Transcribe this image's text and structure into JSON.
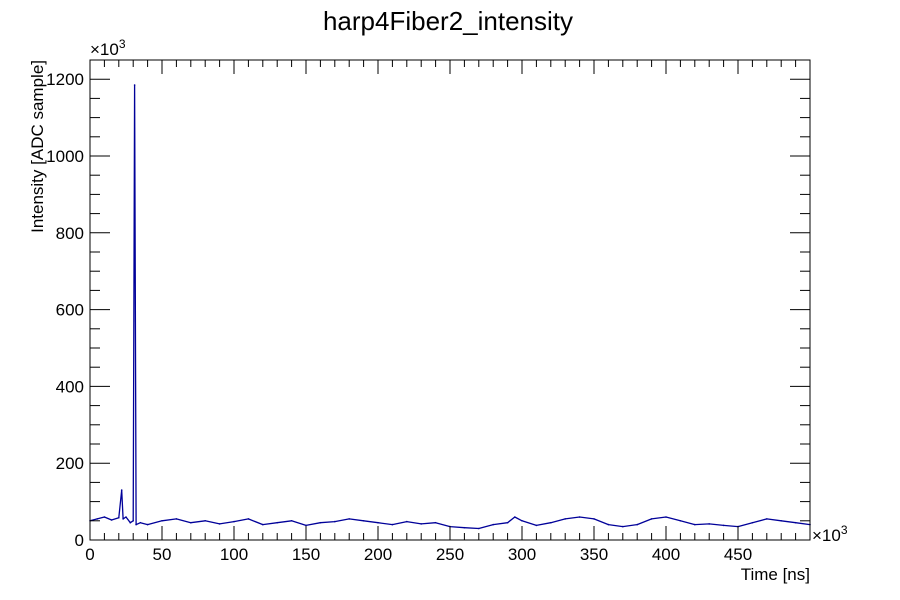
{
  "chart_data": {
    "type": "line",
    "title": "harp4Fiber2_intensity",
    "xlabel": "Time [ns]",
    "ylabel": "Intensity [ADC sample]",
    "x_multiplier": "×10",
    "x_multiplier_exp": "3",
    "y_multiplier": "×10",
    "y_multiplier_exp": "3",
    "xlim": [
      0,
      500
    ],
    "ylim": [
      0,
      1250
    ],
    "x_ticks": [
      "0",
      "50",
      "100",
      "150",
      "200",
      "250",
      "300",
      "350",
      "400",
      "450"
    ],
    "y_ticks": [
      "0",
      "200",
      "400",
      "600",
      "800",
      "1000",
      "1200"
    ],
    "grid": false,
    "line_color": "#000099",
    "series": [
      {
        "x": [
          0,
          5,
          10,
          15,
          20,
          22,
          23,
          25,
          28,
          30,
          31,
          32,
          35,
          40,
          50,
          60,
          70,
          80,
          90,
          100,
          110,
          120,
          130,
          140,
          150,
          160,
          170,
          180,
          190,
          200,
          210,
          220,
          230,
          240,
          250,
          260,
          270,
          280,
          290,
          295,
          300,
          310,
          320,
          330,
          340,
          350,
          360,
          370,
          380,
          390,
          400,
          410,
          420,
          430,
          440,
          450,
          460,
          470,
          480,
          490,
          500
        ],
        "values": [
          50,
          55,
          60,
          52,
          58,
          130,
          55,
          60,
          45,
          50,
          1185,
          40,
          45,
          40,
          50,
          55,
          45,
          50,
          42,
          48,
          55,
          40,
          45,
          50,
          38,
          45,
          48,
          55,
          50,
          45,
          40,
          48,
          42,
          45,
          35,
          32,
          30,
          40,
          45,
          60,
          50,
          38,
          45,
          55,
          60,
          55,
          40,
          35,
          40,
          55,
          60,
          50,
          40,
          42,
          38,
          35,
          45,
          55,
          50,
          45,
          40
        ]
      }
    ]
  }
}
